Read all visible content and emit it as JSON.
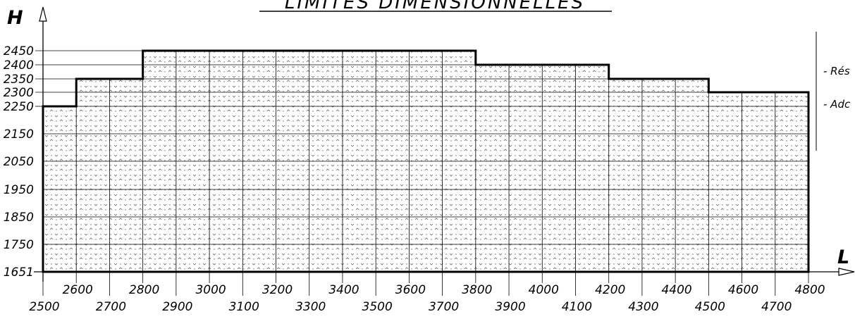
{
  "chart_data": {
    "type": "area",
    "title": "LIMITES DIMENSIONNELLES",
    "xlabel": "L",
    "ylabel": "H",
    "xlim": [
      2500,
      4800
    ],
    "ylim": [
      1651,
      2450
    ],
    "x_ticks": [
      2500,
      2600,
      2700,
      2800,
      2900,
      3000,
      3100,
      3200,
      3300,
      3400,
      3500,
      3600,
      3700,
      3800,
      3900,
      4000,
      4100,
      4200,
      4300,
      4400,
      4500,
      4600,
      4700,
      4800
    ],
    "y_ticks": [
      1651,
      1750,
      1850,
      1950,
      2050,
      2150,
      2250,
      2300,
      2350,
      2400,
      2450
    ],
    "series": [
      {
        "points": [
          {
            "x": 2500,
            "y": 2250
          },
          {
            "x": 2600,
            "y": 2350
          },
          {
            "x": 2800,
            "y": 2450
          },
          {
            "x": 3800,
            "y": 2400
          },
          {
            "x": 4200,
            "y": 2350
          },
          {
            "x": 4500,
            "y": 2300
          },
          {
            "x": 4800,
            "y": 2300
          }
        ]
      }
    ],
    "legend_items": [
      "- Rés",
      "- Adc"
    ],
    "grid": true
  }
}
